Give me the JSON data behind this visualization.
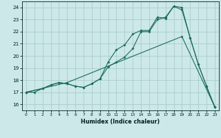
{
  "xlabel": "Humidex (Indice chaleur)",
  "bg_color": "#cce8e8",
  "line_color": "#1a6b5a",
  "grid_color": "#aacccc",
  "xlim": [
    -0.5,
    23.5
  ],
  "ylim": [
    15.5,
    24.5
  ],
  "yticks": [
    16,
    17,
    18,
    19,
    20,
    21,
    22,
    23,
    24
  ],
  "xticks": [
    0,
    1,
    2,
    3,
    4,
    5,
    6,
    7,
    8,
    9,
    10,
    11,
    12,
    13,
    14,
    15,
    16,
    17,
    18,
    19,
    20,
    21,
    22,
    23
  ],
  "series1_x": [
    0,
    1,
    2,
    3,
    4,
    5,
    6,
    7,
    8,
    9,
    10,
    11,
    12,
    13,
    14,
    15,
    16,
    17,
    18,
    19,
    20,
    21,
    22,
    23
  ],
  "series1_y": [
    17,
    17,
    17.3,
    17.6,
    17.8,
    17.7,
    17.5,
    17.4,
    17.7,
    18.1,
    19.5,
    20.5,
    20.9,
    21.8,
    22.1,
    22.1,
    23.2,
    23.1,
    24.1,
    24.0,
    21.5,
    19.3,
    17.5,
    15.8
  ],
  "series2_x": [
    0,
    2,
    3,
    4,
    5,
    6,
    7,
    8,
    9,
    10,
    11,
    12,
    13,
    14,
    15,
    16,
    17,
    18,
    19,
    20,
    21,
    22,
    23
  ],
  "series2_y": [
    17,
    17.3,
    17.6,
    17.8,
    17.7,
    17.5,
    17.4,
    17.7,
    18.1,
    19.1,
    19.5,
    19.9,
    20.6,
    22.0,
    22.0,
    23.0,
    23.2,
    24.1,
    23.8,
    21.5,
    19.3,
    17.5,
    15.8
  ],
  "series3_x": [
    0,
    5,
    19,
    23
  ],
  "series3_y": [
    17,
    17.8,
    21.6,
    15.8
  ]
}
